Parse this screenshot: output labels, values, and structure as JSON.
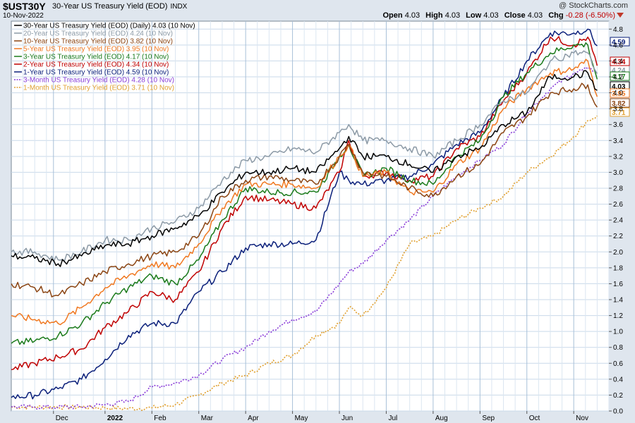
{
  "header": {
    "symbol": "$UST30Y",
    "description": "30-Year US Treasury Yield (EOD)",
    "exchange": "INDX",
    "date": "10-Nov-2022",
    "copyright": "@ StockCharts.com",
    "open_label": "Open",
    "open": "4.03",
    "high_label": "High",
    "high": "4.03",
    "low_label": "Low",
    "low": "4.03",
    "close_label": "Close",
    "close": "4.03",
    "chg_label": "Chg",
    "chg": "-0.28 (-6.50%)"
  },
  "chart_data": {
    "type": "line",
    "ylim": [
      0,
      4.9
    ],
    "yticks": [
      0.0,
      0.2,
      0.4,
      0.6,
      0.8,
      1.0,
      1.2,
      1.4,
      1.6,
      1.8,
      2.0,
      2.2,
      2.4,
      2.6,
      2.8,
      3.0,
      3.2,
      3.4,
      3.6,
      3.8,
      4.0,
      4.2,
      4.4,
      4.6,
      4.8
    ],
    "xticks": [
      "Dec",
      "2022",
      "Feb",
      "Mar",
      "Apr",
      "May",
      "Jun",
      "Jul",
      "Aug",
      "Sep",
      "Oct",
      "Nov"
    ],
    "xtick_pos": [
      0.9,
      2.0,
      3.0,
      4.0,
      5.0,
      6.0,
      7.0,
      8.0,
      9.0,
      10.0,
      11.0,
      12.0
    ],
    "bold_xtick": "2022",
    "xlim": [
      0,
      12.75
    ],
    "grid": true,
    "legend_position": "top-left",
    "series": [
      {
        "name": "30-Year US Treasury Yield (EOD) (Daily) 4.03 (10 Nov)",
        "color": "#000000",
        "dotted": false,
        "end_label": "4.03",
        "x": [
          0,
          0.5,
          1,
          1.5,
          2,
          2.5,
          3,
          3.5,
          4,
          4.5,
          5,
          5.5,
          6,
          6.5,
          7,
          7.2,
          7.5,
          8,
          8.5,
          9,
          9.5,
          10,
          10.5,
          11,
          11.5,
          12,
          12.3,
          12.5
        ],
        "values": [
          1.95,
          1.92,
          1.85,
          1.95,
          2.08,
          2.1,
          2.2,
          2.3,
          2.45,
          2.75,
          3.0,
          3.0,
          3.05,
          3.0,
          3.3,
          3.45,
          3.2,
          3.2,
          3.1,
          3.0,
          3.2,
          3.3,
          3.6,
          3.75,
          4.2,
          4.2,
          4.25,
          4.03
        ]
      },
      {
        "name": "20-Year US Treasury Yield (EOD) 4.24 (10 Nov)",
        "color": "#8c9aa6",
        "dotted": false,
        "end_label": "4.24",
        "x": [
          0,
          0.5,
          1,
          1.5,
          2,
          2.5,
          3,
          3.5,
          4,
          4.5,
          5,
          5.5,
          6,
          6.5,
          7,
          7.2,
          7.5,
          8,
          8.5,
          9,
          9.5,
          10,
          10.5,
          11,
          11.5,
          12,
          12.3,
          12.5
        ],
        "values": [
          2.0,
          2.0,
          1.9,
          2.0,
          2.15,
          2.15,
          2.3,
          2.38,
          2.55,
          2.9,
          3.15,
          3.2,
          3.3,
          3.25,
          3.5,
          3.6,
          3.4,
          3.4,
          3.3,
          3.2,
          3.4,
          3.6,
          3.9,
          4.0,
          4.4,
          4.5,
          4.5,
          4.24
        ]
      },
      {
        "name": "10-Year US Treasury Yield (EOD) 3.82 (10 Nov)",
        "color": "#8b4513",
        "dotted": false,
        "end_label": "3.82",
        "x": [
          0,
          0.5,
          1,
          1.5,
          2,
          2.5,
          3,
          3.5,
          4,
          4.5,
          5,
          5.5,
          6,
          6.5,
          7,
          7.2,
          7.5,
          8,
          8.5,
          9,
          9.5,
          10,
          10.5,
          11,
          11.5,
          12,
          12.3,
          12.5
        ],
        "values": [
          1.6,
          1.55,
          1.45,
          1.6,
          1.75,
          1.85,
          1.95,
          2.0,
          2.2,
          2.7,
          2.9,
          2.95,
          2.9,
          2.85,
          3.2,
          3.35,
          3.0,
          2.95,
          2.8,
          2.7,
          2.95,
          3.1,
          3.5,
          3.7,
          4.0,
          4.05,
          4.1,
          3.82
        ]
      },
      {
        "name": "5-Year US Treasury Yield (EOD) 3.95 (10 Nov)",
        "color": "#f07820",
        "dotted": false,
        "end_label": "3.95",
        "x": [
          0,
          0.5,
          1,
          1.5,
          2,
          2.5,
          3,
          3.5,
          4,
          4.5,
          5,
          5.5,
          6,
          6.5,
          7,
          7.2,
          7.5,
          8,
          8.5,
          9,
          9.5,
          10,
          10.5,
          11,
          11.5,
          12,
          12.3,
          12.5
        ],
        "values": [
          1.2,
          1.15,
          1.1,
          1.3,
          1.55,
          1.7,
          1.85,
          1.8,
          2.1,
          2.55,
          2.85,
          2.85,
          2.85,
          2.8,
          3.2,
          3.35,
          2.95,
          3.0,
          2.75,
          2.75,
          3.1,
          3.3,
          3.8,
          4.05,
          4.25,
          4.3,
          4.4,
          3.95
        ]
      },
      {
        "name": "3-Year US Treasury Yield (EOD) 4.17 (10 Nov)",
        "color": "#1a7a1a",
        "dotted": false,
        "end_label": "4.17",
        "x": [
          0,
          0.5,
          1,
          1.5,
          2,
          2.5,
          3,
          3.5,
          4,
          4.5,
          5,
          5.5,
          6,
          6.5,
          7,
          7.2,
          7.5,
          8,
          8.5,
          9,
          9.5,
          10,
          10.5,
          11,
          11.5,
          12,
          12.3,
          12.5
        ],
        "values": [
          0.85,
          0.88,
          0.95,
          1.1,
          1.35,
          1.55,
          1.7,
          1.6,
          1.9,
          2.4,
          2.8,
          2.75,
          2.75,
          2.75,
          3.2,
          3.35,
          2.95,
          3.05,
          2.9,
          2.85,
          3.2,
          3.4,
          3.95,
          4.25,
          4.5,
          4.6,
          4.6,
          4.17
        ]
      },
      {
        "name": "2-Year US Treasury Yield (EOD) 4.34 (10 Nov)",
        "color": "#c00000",
        "dotted": false,
        "end_label": "4.34",
        "x": [
          0,
          0.5,
          1,
          1.5,
          2,
          2.5,
          3,
          3.5,
          4,
          4.5,
          5,
          5.5,
          6,
          6.5,
          7,
          7.2,
          7.5,
          8,
          8.5,
          9,
          9.5,
          10,
          10.5,
          11,
          11.5,
          12,
          12.3,
          12.5
        ],
        "values": [
          0.52,
          0.6,
          0.68,
          0.78,
          1.05,
          1.25,
          1.5,
          1.4,
          1.75,
          2.3,
          2.7,
          2.65,
          2.6,
          2.55,
          3.0,
          3.4,
          2.95,
          3.0,
          2.9,
          2.95,
          3.3,
          3.45,
          3.9,
          4.25,
          4.7,
          4.6,
          4.7,
          4.34
        ]
      },
      {
        "name": "1-Year US Treasury Yield (EOD) 4.59 (10 Nov)",
        "color": "#0a1f7a",
        "dotted": false,
        "end_label": "4.59",
        "x": [
          0,
          0.5,
          1,
          1.5,
          2,
          2.5,
          3,
          3.5,
          4,
          4.5,
          5,
          5.5,
          6,
          6.5,
          7,
          7.2,
          7.5,
          8,
          8.5,
          9,
          9.5,
          10,
          10.5,
          11,
          11.5,
          12,
          12.3,
          12.5
        ],
        "values": [
          0.17,
          0.2,
          0.28,
          0.4,
          0.65,
          0.95,
          1.1,
          1.1,
          1.5,
          1.75,
          2.05,
          2.1,
          2.1,
          2.15,
          3.0,
          2.9,
          2.85,
          2.9,
          2.95,
          3.1,
          3.35,
          3.5,
          3.95,
          4.4,
          4.75,
          4.75,
          4.8,
          4.59
        ]
      },
      {
        "name": "3-Month US Treasury Yield (EOD) 4.28 (10 Nov)",
        "color": "#8a3ed8",
        "dotted": true,
        "end_label": "4.28",
        "x": [
          0,
          0.5,
          1,
          1.5,
          2,
          2.5,
          3,
          3.5,
          4,
          4.5,
          5,
          5.5,
          6,
          6.5,
          7,
          7.2,
          7.5,
          8,
          8.5,
          9,
          9.5,
          10,
          10.5,
          11,
          11.5,
          12,
          12.3,
          12.5
        ],
        "values": [
          0.05,
          0.05,
          0.05,
          0.05,
          0.08,
          0.12,
          0.3,
          0.35,
          0.45,
          0.65,
          0.8,
          1.0,
          1.15,
          1.25,
          1.6,
          1.75,
          1.85,
          2.15,
          2.4,
          2.7,
          2.95,
          3.15,
          3.35,
          3.75,
          4.05,
          4.25,
          4.3,
          4.28
        ]
      },
      {
        "name": "1-Month US Treasury Yield (EOD) 3.71 (10 Nov)",
        "color": "#e0a030",
        "dotted": true,
        "end_label": "3.71",
        "x": [
          0,
          0.5,
          1,
          1.5,
          2,
          2.5,
          3,
          3.5,
          4,
          4.5,
          5,
          5.5,
          6,
          6.5,
          7,
          7.2,
          7.5,
          8,
          8.5,
          9,
          9.5,
          10,
          10.5,
          11,
          11.5,
          12,
          12.3,
          12.5
        ],
        "values": [
          0.05,
          0.05,
          0.05,
          0.05,
          0.04,
          0.03,
          0.04,
          0.08,
          0.2,
          0.35,
          0.45,
          0.6,
          0.7,
          0.95,
          1.1,
          1.3,
          1.2,
          1.55,
          2.1,
          2.2,
          2.4,
          2.55,
          2.7,
          3.0,
          3.2,
          3.45,
          3.65,
          3.71
        ]
      }
    ]
  }
}
